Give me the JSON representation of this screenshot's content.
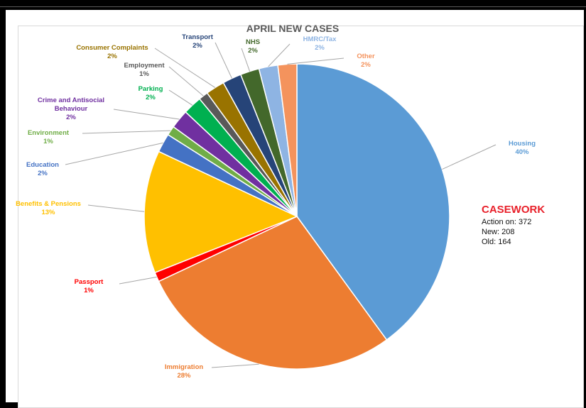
{
  "chart_data": {
    "type": "pie",
    "title": "APRIL NEW CASES",
    "slices": [
      {
        "label": "Housing",
        "value": 40,
        "pct_label": "40%",
        "color": "#5b9bd5"
      },
      {
        "label": "Immigration",
        "value": 28,
        "pct_label": "28%",
        "color": "#ed7d31"
      },
      {
        "label": "Passport",
        "value": 1,
        "pct_label": "1%",
        "color": "#ff0000"
      },
      {
        "label": "Benefits & Pensions",
        "value": 13,
        "pct_label": "13%",
        "color": "#ffc000"
      },
      {
        "label": "Education",
        "value": 2,
        "pct_label": "2%",
        "color": "#4472c4"
      },
      {
        "label": "Environment",
        "value": 1,
        "pct_label": "1%",
        "color": "#70ad47"
      },
      {
        "label": "Crime and Antisocial Behaviour",
        "value": 2,
        "pct_label": "2%",
        "color": "#7030a0"
      },
      {
        "label": "Parking",
        "value": 2,
        "pct_label": "2%",
        "color": "#00b050"
      },
      {
        "label": "Employment",
        "value": 1,
        "pct_label": "1%",
        "color": "#595959"
      },
      {
        "label": "Consumer Complaints",
        "value": 2,
        "pct_label": "2%",
        "color": "#997300"
      },
      {
        "label": "Transport",
        "value": 2,
        "pct_label": "2%",
        "color": "#264478"
      },
      {
        "label": "NHS",
        "value": 2,
        "pct_label": "2%",
        "color": "#43682b"
      },
      {
        "label": "HMRC/Tax",
        "value": 2,
        "pct_label": "2%",
        "color": "#8eb4e3"
      },
      {
        "label": "Other",
        "value": 2,
        "pct_label": "2%",
        "color": "#f4935d"
      }
    ],
    "legend": "none"
  },
  "casework": {
    "title": "CASEWORK",
    "action_on": "Action on: 372",
    "new": "New: 208",
    "old": "Old: 164"
  }
}
